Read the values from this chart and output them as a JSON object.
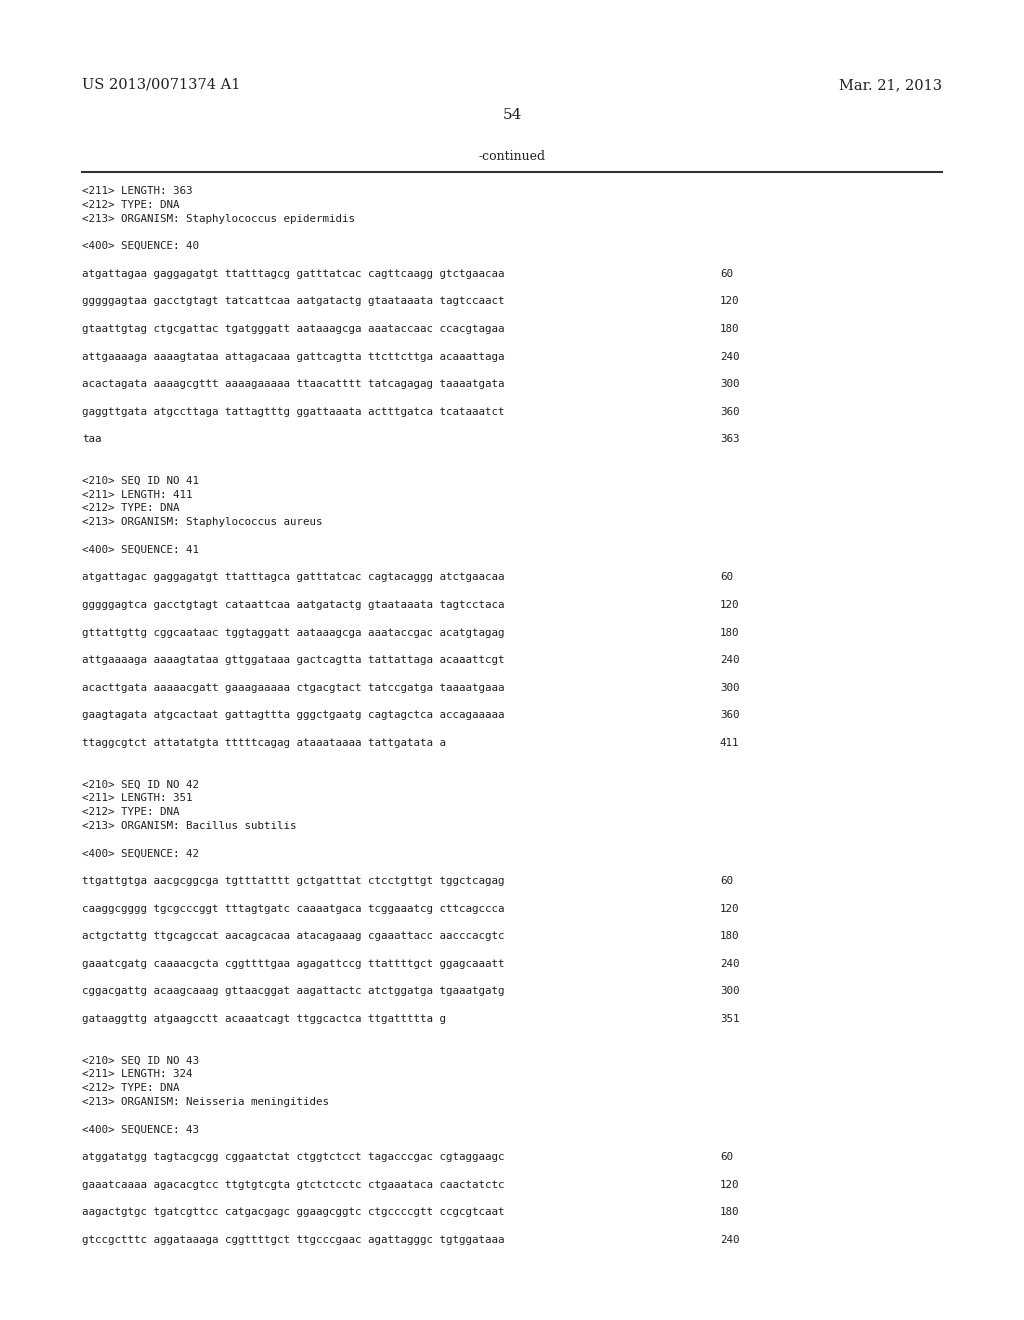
{
  "header_left": "US 2013/0071374 A1",
  "header_right": "Mar. 21, 2013",
  "page_number": "54",
  "continued_label": "-continued",
  "background_color": "#ffffff",
  "text_color": "#231f20",
  "header_font_size": 10.5,
  "page_num_font_size": 11,
  "continued_font_size": 9,
  "mono_font_size": 7.8,
  "lines": [
    {
      "text": "<211> LENGTH: 363",
      "num": null
    },
    {
      "text": "<212> TYPE: DNA",
      "num": null
    },
    {
      "text": "<213> ORGANISM: Staphylococcus epidermidis",
      "num": null
    },
    {
      "text": "",
      "num": null
    },
    {
      "text": "<400> SEQUENCE: 40",
      "num": null
    },
    {
      "text": "",
      "num": null
    },
    {
      "text": "atgattagaa gaggagatgt ttatttagcg gatttatcac cagttcaagg gtctgaacaa",
      "num": "60"
    },
    {
      "text": "",
      "num": null
    },
    {
      "text": "gggggagtaa gacctgtagt tatcattcaa aatgatactg gtaataaata tagtccaact",
      "num": "120"
    },
    {
      "text": "",
      "num": null
    },
    {
      "text": "gtaattgtag ctgcgattac tgatgggatt aataaagcga aaataccaac ccacgtagaa",
      "num": "180"
    },
    {
      "text": "",
      "num": null
    },
    {
      "text": "attgaaaaga aaaagtataa attagacaaa gattcagtta ttcttcttga acaaattaga",
      "num": "240"
    },
    {
      "text": "",
      "num": null
    },
    {
      "text": "acactagata aaaagcgttt aaaagaaaaa ttaacatttt tatcagagag taaaatgata",
      "num": "300"
    },
    {
      "text": "",
      "num": null
    },
    {
      "text": "gaggttgata atgccttaga tattagtttg ggattaaata actttgatca tcataaatct",
      "num": "360"
    },
    {
      "text": "",
      "num": null
    },
    {
      "text": "taa",
      "num": "363"
    },
    {
      "text": "",
      "num": null
    },
    {
      "text": "",
      "num": null
    },
    {
      "text": "<210> SEQ ID NO 41",
      "num": null
    },
    {
      "text": "<211> LENGTH: 411",
      "num": null
    },
    {
      "text": "<212> TYPE: DNA",
      "num": null
    },
    {
      "text": "<213> ORGANISM: Staphylococcus aureus",
      "num": null
    },
    {
      "text": "",
      "num": null
    },
    {
      "text": "<400> SEQUENCE: 41",
      "num": null
    },
    {
      "text": "",
      "num": null
    },
    {
      "text": "atgattagac gaggagatgt ttatttagca gatttatcac cagtacaggg atctgaacaa",
      "num": "60"
    },
    {
      "text": "",
      "num": null
    },
    {
      "text": "gggggagtca gacctgtagt cataattcaa aatgatactg gtaataaata tagtcctaca",
      "num": "120"
    },
    {
      "text": "",
      "num": null
    },
    {
      "text": "gttattgttg cggcaataac tggtaggatt aataaagcga aaataccgac acatgtagag",
      "num": "180"
    },
    {
      "text": "",
      "num": null
    },
    {
      "text": "attgaaaaga aaaagtataa gttggataaa gactcagtta tattattaga acaaattcgt",
      "num": "240"
    },
    {
      "text": "",
      "num": null
    },
    {
      "text": "acacttgata aaaaacgatt gaaagaaaaa ctgacgtact tatccgatga taaaatgaaa",
      "num": "300"
    },
    {
      "text": "",
      "num": null
    },
    {
      "text": "gaagtagata atgcactaat gattagttta gggctgaatg cagtagctca accagaaaaa",
      "num": "360"
    },
    {
      "text": "",
      "num": null
    },
    {
      "text": "ttaggcgtct attatatgta tttttcagag ataaataaaa tattgatata a",
      "num": "411"
    },
    {
      "text": "",
      "num": null
    },
    {
      "text": "",
      "num": null
    },
    {
      "text": "<210> SEQ ID NO 42",
      "num": null
    },
    {
      "text": "<211> LENGTH: 351",
      "num": null
    },
    {
      "text": "<212> TYPE: DNA",
      "num": null
    },
    {
      "text": "<213> ORGANISM: Bacillus subtilis",
      "num": null
    },
    {
      "text": "",
      "num": null
    },
    {
      "text": "<400> SEQUENCE: 42",
      "num": null
    },
    {
      "text": "",
      "num": null
    },
    {
      "text": "ttgattgtga aacgcggcga tgtttatttt gctgatttat ctcctgttgt tggctcagag",
      "num": "60"
    },
    {
      "text": "",
      "num": null
    },
    {
      "text": "caaggcgggg tgcgcccggt tttagtgatc caaaatgaca tcggaaatcg cttcagccca",
      "num": "120"
    },
    {
      "text": "",
      "num": null
    },
    {
      "text": "actgctattg ttgcagccat aacagcacaa atacagaaag cgaaattacc aacccacgtc",
      "num": "180"
    },
    {
      "text": "",
      "num": null
    },
    {
      "text": "gaaatcgatg caaaacgcta cggttttgaa agagattccg ttattttgct ggagcaaatt",
      "num": "240"
    },
    {
      "text": "",
      "num": null
    },
    {
      "text": "cggacgattg acaagcaaag gttaacggat aagattactc atctggatga tgaaatgatg",
      "num": "300"
    },
    {
      "text": "",
      "num": null
    },
    {
      "text": "gataaggttg atgaagcctt acaaatcagt ttggcactca ttgattttta g",
      "num": "351"
    },
    {
      "text": "",
      "num": null
    },
    {
      "text": "",
      "num": null
    },
    {
      "text": "<210> SEQ ID NO 43",
      "num": null
    },
    {
      "text": "<211> LENGTH: 324",
      "num": null
    },
    {
      "text": "<212> TYPE: DNA",
      "num": null
    },
    {
      "text": "<213> ORGANISM: Neisseria meningitides",
      "num": null
    },
    {
      "text": "",
      "num": null
    },
    {
      "text": "<400> SEQUENCE: 43",
      "num": null
    },
    {
      "text": "",
      "num": null
    },
    {
      "text": "atggatatgg tagtacgcgg cggaatctat ctggtctcct tagacccgac cgtaggaagc",
      "num": "60"
    },
    {
      "text": "",
      "num": null
    },
    {
      "text": "gaaatcaaaa agacacgtcc ttgtgtcgta gtctctcctc ctgaaataca caactatctc",
      "num": "120"
    },
    {
      "text": "",
      "num": null
    },
    {
      "text": "aagactgtgc tgatcgttcc catgacgagc ggaagcggtc ctgccccgtt ccgcgtcaat",
      "num": "180"
    },
    {
      "text": "",
      "num": null
    },
    {
      "text": "gtccgctttc aggataaaga cggttttgct ttgcccgaac agattagggc tgtggataaa",
      "num": "240"
    }
  ]
}
